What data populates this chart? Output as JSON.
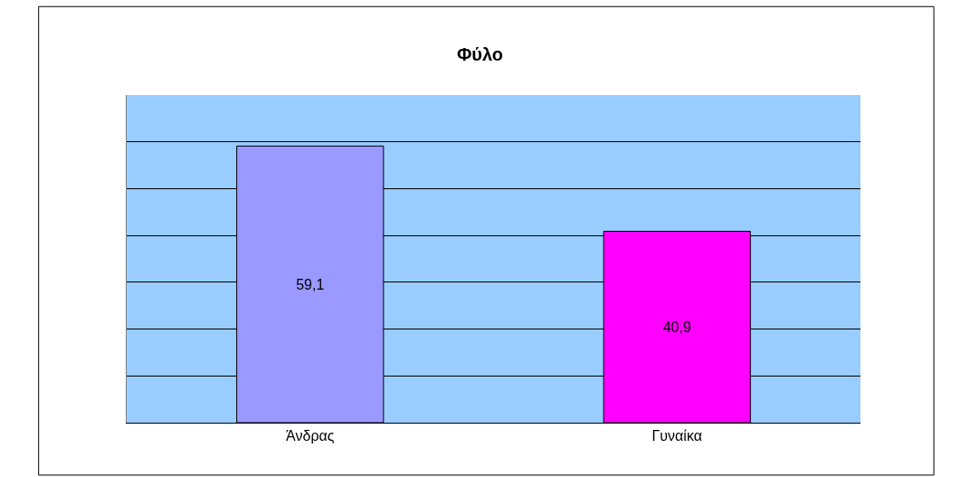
{
  "chart_data": {
    "type": "bar",
    "title": "Φύλο",
    "categories": [
      "Άνδρας",
      "Γυναίκα"
    ],
    "values": [
      59.1,
      40.9
    ],
    "value_labels": [
      "59,1",
      "40,9"
    ],
    "colors": [
      "#9999ff",
      "#ff00ff"
    ],
    "ylim": [
      0,
      70
    ],
    "yticks": [
      {
        "value": 0,
        "label": null
      },
      {
        "value": 10,
        "label": null
      },
      {
        "value": 20,
        "label": null
      },
      {
        "value": 30,
        "label": null
      },
      {
        "value": 40,
        "label": null
      },
      {
        "value": 50,
        "label": null
      },
      {
        "value": 60,
        "label": null
      },
      {
        "value": 70,
        "label": null
      }
    ],
    "grid": "y",
    "tick_labels": "x"
  }
}
